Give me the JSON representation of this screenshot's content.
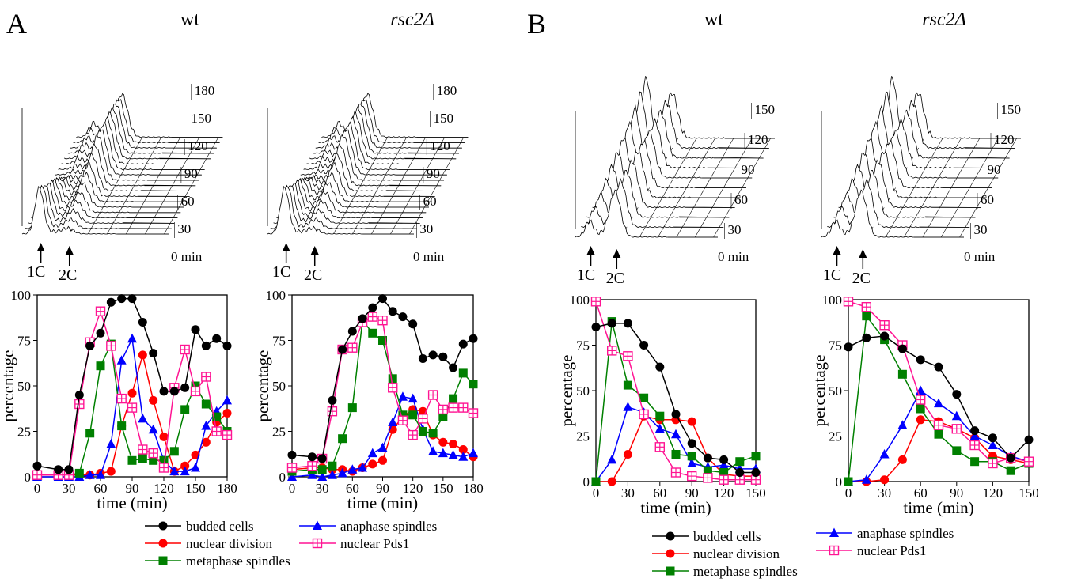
{
  "panels": [
    {
      "letter": "A",
      "left_title": "wt",
      "right_title": "rsc2Δ"
    },
    {
      "letter": "B",
      "left_title": "wt",
      "right_title": "rsc2Δ"
    }
  ],
  "flow_labels": {
    "one_c": "1C",
    "two_c": "2C",
    "zero": "0 min",
    "ticksA": [
      "30",
      "60",
      "90",
      "120",
      "150",
      "180"
    ],
    "ticksB": [
      "30",
      "60",
      "90",
      "120",
      "150"
    ]
  },
  "legend": {
    "budded": "budded cells",
    "nuclear_division": "nuclear division",
    "metaphase": "metaphase spindles",
    "anaphase": "anaphase spindles",
    "pds1": "nuclear Pds1"
  },
  "colors": {
    "budded": "#000000",
    "nuclear_division": "#ff0000",
    "metaphase": "#008000",
    "anaphase": "#0000ff",
    "pds1": "#ff1493"
  },
  "chart_data": [
    {
      "type": "line",
      "panel": "A",
      "title": "wt",
      "xlabel": "time (min)",
      "ylabel": "percentage",
      "xlim": [
        0,
        180
      ],
      "ylim": [
        0,
        100
      ],
      "xticks": [
        0,
        30,
        60,
        90,
        120,
        150,
        180
      ],
      "yticks": [
        0,
        25,
        50,
        75,
        100
      ],
      "series": [
        {
          "name": "budded cells",
          "key": "budded",
          "x": [
            0,
            20,
            30,
            40,
            50,
            60,
            70,
            80,
            90,
            100,
            110,
            120,
            130,
            140,
            150,
            160,
            170,
            180
          ],
          "y": [
            6,
            4,
            4,
            45,
            72,
            79,
            96,
            98,
            98,
            85,
            68,
            47,
            47,
            49,
            81,
            72,
            76,
            72
          ]
        },
        {
          "name": "nuclear division",
          "key": "nuclear_division",
          "x": [
            0,
            20,
            30,
            40,
            50,
            60,
            70,
            80,
            90,
            100,
            110,
            120,
            130,
            140,
            150,
            160,
            170,
            180
          ],
          "y": [
            1,
            1,
            1,
            1,
            1,
            2,
            3,
            28,
            46,
            67,
            42,
            22,
            3,
            6,
            12,
            19,
            30,
            35
          ]
        },
        {
          "name": "metaphase spindles",
          "key": "metaphase",
          "x": [
            0,
            20,
            30,
            40,
            50,
            60,
            70,
            80,
            90,
            100,
            110,
            120,
            130,
            140,
            150,
            160,
            170,
            180
          ],
          "y": [
            1,
            1,
            1,
            2,
            24,
            61,
            73,
            28,
            9,
            10,
            9,
            9,
            14,
            37,
            50,
            40,
            33,
            25
          ]
        },
        {
          "name": "anaphase spindles",
          "key": "anaphase",
          "x": [
            0,
            20,
            30,
            40,
            50,
            60,
            70,
            80,
            90,
            100,
            110,
            120,
            130,
            140,
            150,
            160,
            170,
            180
          ],
          "y": [
            0,
            0,
            0,
            0,
            1,
            1,
            18,
            64,
            76,
            32,
            26,
            9,
            3,
            3,
            5,
            28,
            36,
            42
          ]
        },
        {
          "name": "nuclear Pds1",
          "key": "pds1",
          "x": [
            0,
            20,
            30,
            40,
            50,
            60,
            70,
            80,
            90,
            100,
            110,
            120,
            130,
            140,
            150,
            160,
            170,
            180
          ],
          "y": [
            1,
            1,
            1,
            40,
            74,
            91,
            72,
            43,
            38,
            15,
            13,
            5,
            49,
            70,
            47,
            55,
            25,
            23
          ]
        }
      ]
    },
    {
      "type": "line",
      "panel": "A",
      "title": "rsc2Δ",
      "xlabel": "time (min)",
      "ylabel": "percentage",
      "xlim": [
        0,
        180
      ],
      "ylim": [
        0,
        100
      ],
      "xticks": [
        0,
        30,
        60,
        90,
        120,
        150,
        180
      ],
      "yticks": [
        0,
        25,
        50,
        75,
        100
      ],
      "series": [
        {
          "name": "budded cells",
          "key": "budded",
          "x": [
            0,
            20,
            30,
            40,
            50,
            60,
            70,
            80,
            90,
            100,
            110,
            120,
            130,
            140,
            150,
            160,
            170,
            180
          ],
          "y": [
            12,
            11,
            10,
            42,
            70,
            80,
            87,
            93,
            98,
            91,
            88,
            84,
            65,
            67,
            66,
            60,
            73,
            76
          ]
        },
        {
          "name": "nuclear division",
          "key": "nuclear_division",
          "x": [
            0,
            20,
            30,
            40,
            50,
            60,
            70,
            80,
            90,
            100,
            110,
            120,
            130,
            140,
            150,
            160,
            170,
            180
          ],
          "y": [
            4,
            5,
            5,
            4,
            4,
            3,
            5,
            7,
            9,
            26,
            33,
            37,
            36,
            23,
            19,
            18,
            15,
            11
          ]
        },
        {
          "name": "metaphase spindles",
          "key": "metaphase",
          "x": [
            0,
            20,
            30,
            40,
            50,
            60,
            70,
            80,
            90,
            100,
            110,
            120,
            130,
            140,
            150,
            160,
            170,
            180
          ],
          "y": [
            3,
            4,
            4,
            6,
            21,
            38,
            86,
            79,
            75,
            54,
            34,
            34,
            25,
            24,
            33,
            43,
            57,
            51
          ]
        },
        {
          "name": "anaphase spindles",
          "key": "anaphase",
          "x": [
            0,
            20,
            30,
            40,
            50,
            60,
            70,
            80,
            90,
            100,
            110,
            120,
            130,
            140,
            150,
            160,
            170,
            180
          ],
          "y": [
            0,
            1,
            0,
            1,
            2,
            4,
            5,
            13,
            16,
            30,
            44,
            43,
            26,
            14,
            13,
            12,
            11,
            13
          ]
        },
        {
          "name": "nuclear Pds1",
          "key": "pds1",
          "x": [
            0,
            20,
            30,
            40,
            50,
            60,
            70,
            80,
            90,
            100,
            110,
            120,
            130,
            140,
            150,
            160,
            170,
            180
          ],
          "y": [
            5,
            6,
            10,
            36,
            70,
            71,
            85,
            88,
            86,
            49,
            31,
            23,
            32,
            45,
            37,
            38,
            38,
            35
          ]
        }
      ]
    },
    {
      "type": "line",
      "panel": "B",
      "title": "wt",
      "xlabel": "time (min)",
      "ylabel": "percentage",
      "xlim": [
        0,
        150
      ],
      "ylim": [
        0,
        100
      ],
      "xticks": [
        0,
        30,
        60,
        90,
        120,
        150
      ],
      "yticks": [
        0,
        25,
        50,
        75,
        100
      ],
      "series": [
        {
          "name": "budded cells",
          "key": "budded",
          "x": [
            0,
            15,
            30,
            45,
            60,
            75,
            90,
            105,
            120,
            135,
            150
          ],
          "y": [
            85,
            87,
            87,
            75,
            63,
            37,
            21,
            13,
            12,
            5,
            5
          ]
        },
        {
          "name": "nuclear division",
          "key": "nuclear_division",
          "x": [
            0,
            15,
            30,
            45,
            60,
            75,
            90,
            105,
            120,
            135,
            150
          ],
          "y": [
            0,
            0,
            15,
            36,
            34,
            34,
            33,
            13,
            4,
            3,
            3
          ]
        },
        {
          "name": "metaphase spindles",
          "key": "metaphase",
          "x": [
            0,
            15,
            30,
            45,
            60,
            75,
            90,
            105,
            120,
            135,
            150
          ],
          "y": [
            0,
            88,
            53,
            46,
            36,
            15,
            14,
            6,
            5,
            11,
            14
          ]
        },
        {
          "name": "anaphase spindles",
          "key": "anaphase",
          "x": [
            0,
            15,
            30,
            45,
            60,
            75,
            90,
            105,
            120,
            135,
            150
          ],
          "y": [
            0,
            12,
            41,
            38,
            29,
            26,
            10,
            8,
            9,
            7,
            7
          ]
        },
        {
          "name": "nuclear Pds1",
          "key": "pds1",
          "x": [
            0,
            15,
            30,
            45,
            60,
            75,
            90,
            105,
            120,
            135,
            150
          ],
          "y": [
            99,
            72,
            69,
            37,
            19,
            5,
            3,
            2,
            1,
            1,
            1
          ]
        }
      ]
    },
    {
      "type": "line",
      "panel": "B",
      "title": "rsc2Δ",
      "xlabel": "time (min)",
      "ylabel": "percentage",
      "xlim": [
        0,
        150
      ],
      "ylim": [
        0,
        100
      ],
      "xticks": [
        0,
        30,
        60,
        90,
        120,
        150
      ],
      "yticks": [
        0,
        25,
        50,
        75,
        100
      ],
      "series": [
        {
          "name": "budded cells",
          "key": "budded",
          "x": [
            0,
            15,
            30,
            45,
            60,
            75,
            90,
            105,
            120,
            135,
            150
          ],
          "y": [
            74,
            79,
            80,
            73,
            67,
            63,
            48,
            28,
            24,
            13,
            23
          ]
        },
        {
          "name": "nuclear division",
          "key": "nuclear_division",
          "x": [
            0,
            15,
            30,
            45,
            60,
            75,
            90,
            105,
            120,
            135,
            150
          ],
          "y": [
            0,
            0,
            1,
            12,
            34,
            33,
            29,
            24,
            14,
            12,
            10
          ]
        },
        {
          "name": "metaphase spindles",
          "key": "metaphase",
          "x": [
            0,
            15,
            30,
            45,
            60,
            75,
            90,
            105,
            120,
            135,
            150
          ],
          "y": [
            0,
            91,
            78,
            59,
            40,
            26,
            17,
            11,
            11,
            6,
            10
          ]
        },
        {
          "name": "anaphase spindles",
          "key": "anaphase",
          "x": [
            0,
            15,
            30,
            45,
            60,
            75,
            90,
            105,
            120,
            135,
            150
          ],
          "y": [
            0,
            1,
            15,
            31,
            50,
            43,
            36,
            25,
            20,
            14,
            11
          ]
        },
        {
          "name": "nuclear Pds1",
          "key": "pds1",
          "x": [
            0,
            15,
            30,
            45,
            60,
            75,
            90,
            105,
            120,
            135,
            150
          ],
          "y": [
            99,
            96,
            86,
            75,
            45,
            31,
            29,
            20,
            10,
            13,
            11
          ]
        }
      ]
    }
  ]
}
